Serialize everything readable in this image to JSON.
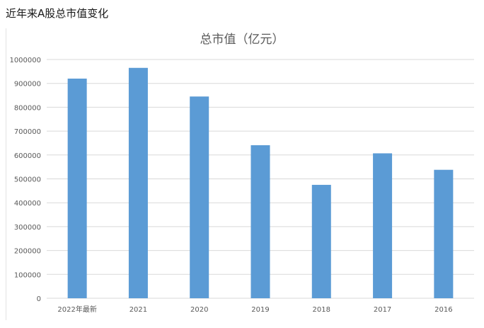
{
  "page": {
    "heading": "近年来A股总市值变化"
  },
  "chart_data": {
    "type": "bar",
    "title": "总市值（亿元）",
    "xlabel": "",
    "ylabel": "",
    "categories": [
      "2022年最新",
      "2021",
      "2020",
      "2019",
      "2018",
      "2017",
      "2016"
    ],
    "values": [
      920000,
      965000,
      845000,
      641000,
      475000,
      607000,
      538000
    ],
    "ylim": [
      0,
      1000000
    ],
    "yticks": [
      0,
      100000,
      200000,
      300000,
      400000,
      500000,
      600000,
      700000,
      800000,
      900000,
      1000000
    ],
    "grid": true,
    "legend": "none",
    "colors": {
      "bar": "#5b9bd5",
      "grid": "#d9d9d9",
      "axis_text": "#595959",
      "title": "#595959"
    }
  }
}
